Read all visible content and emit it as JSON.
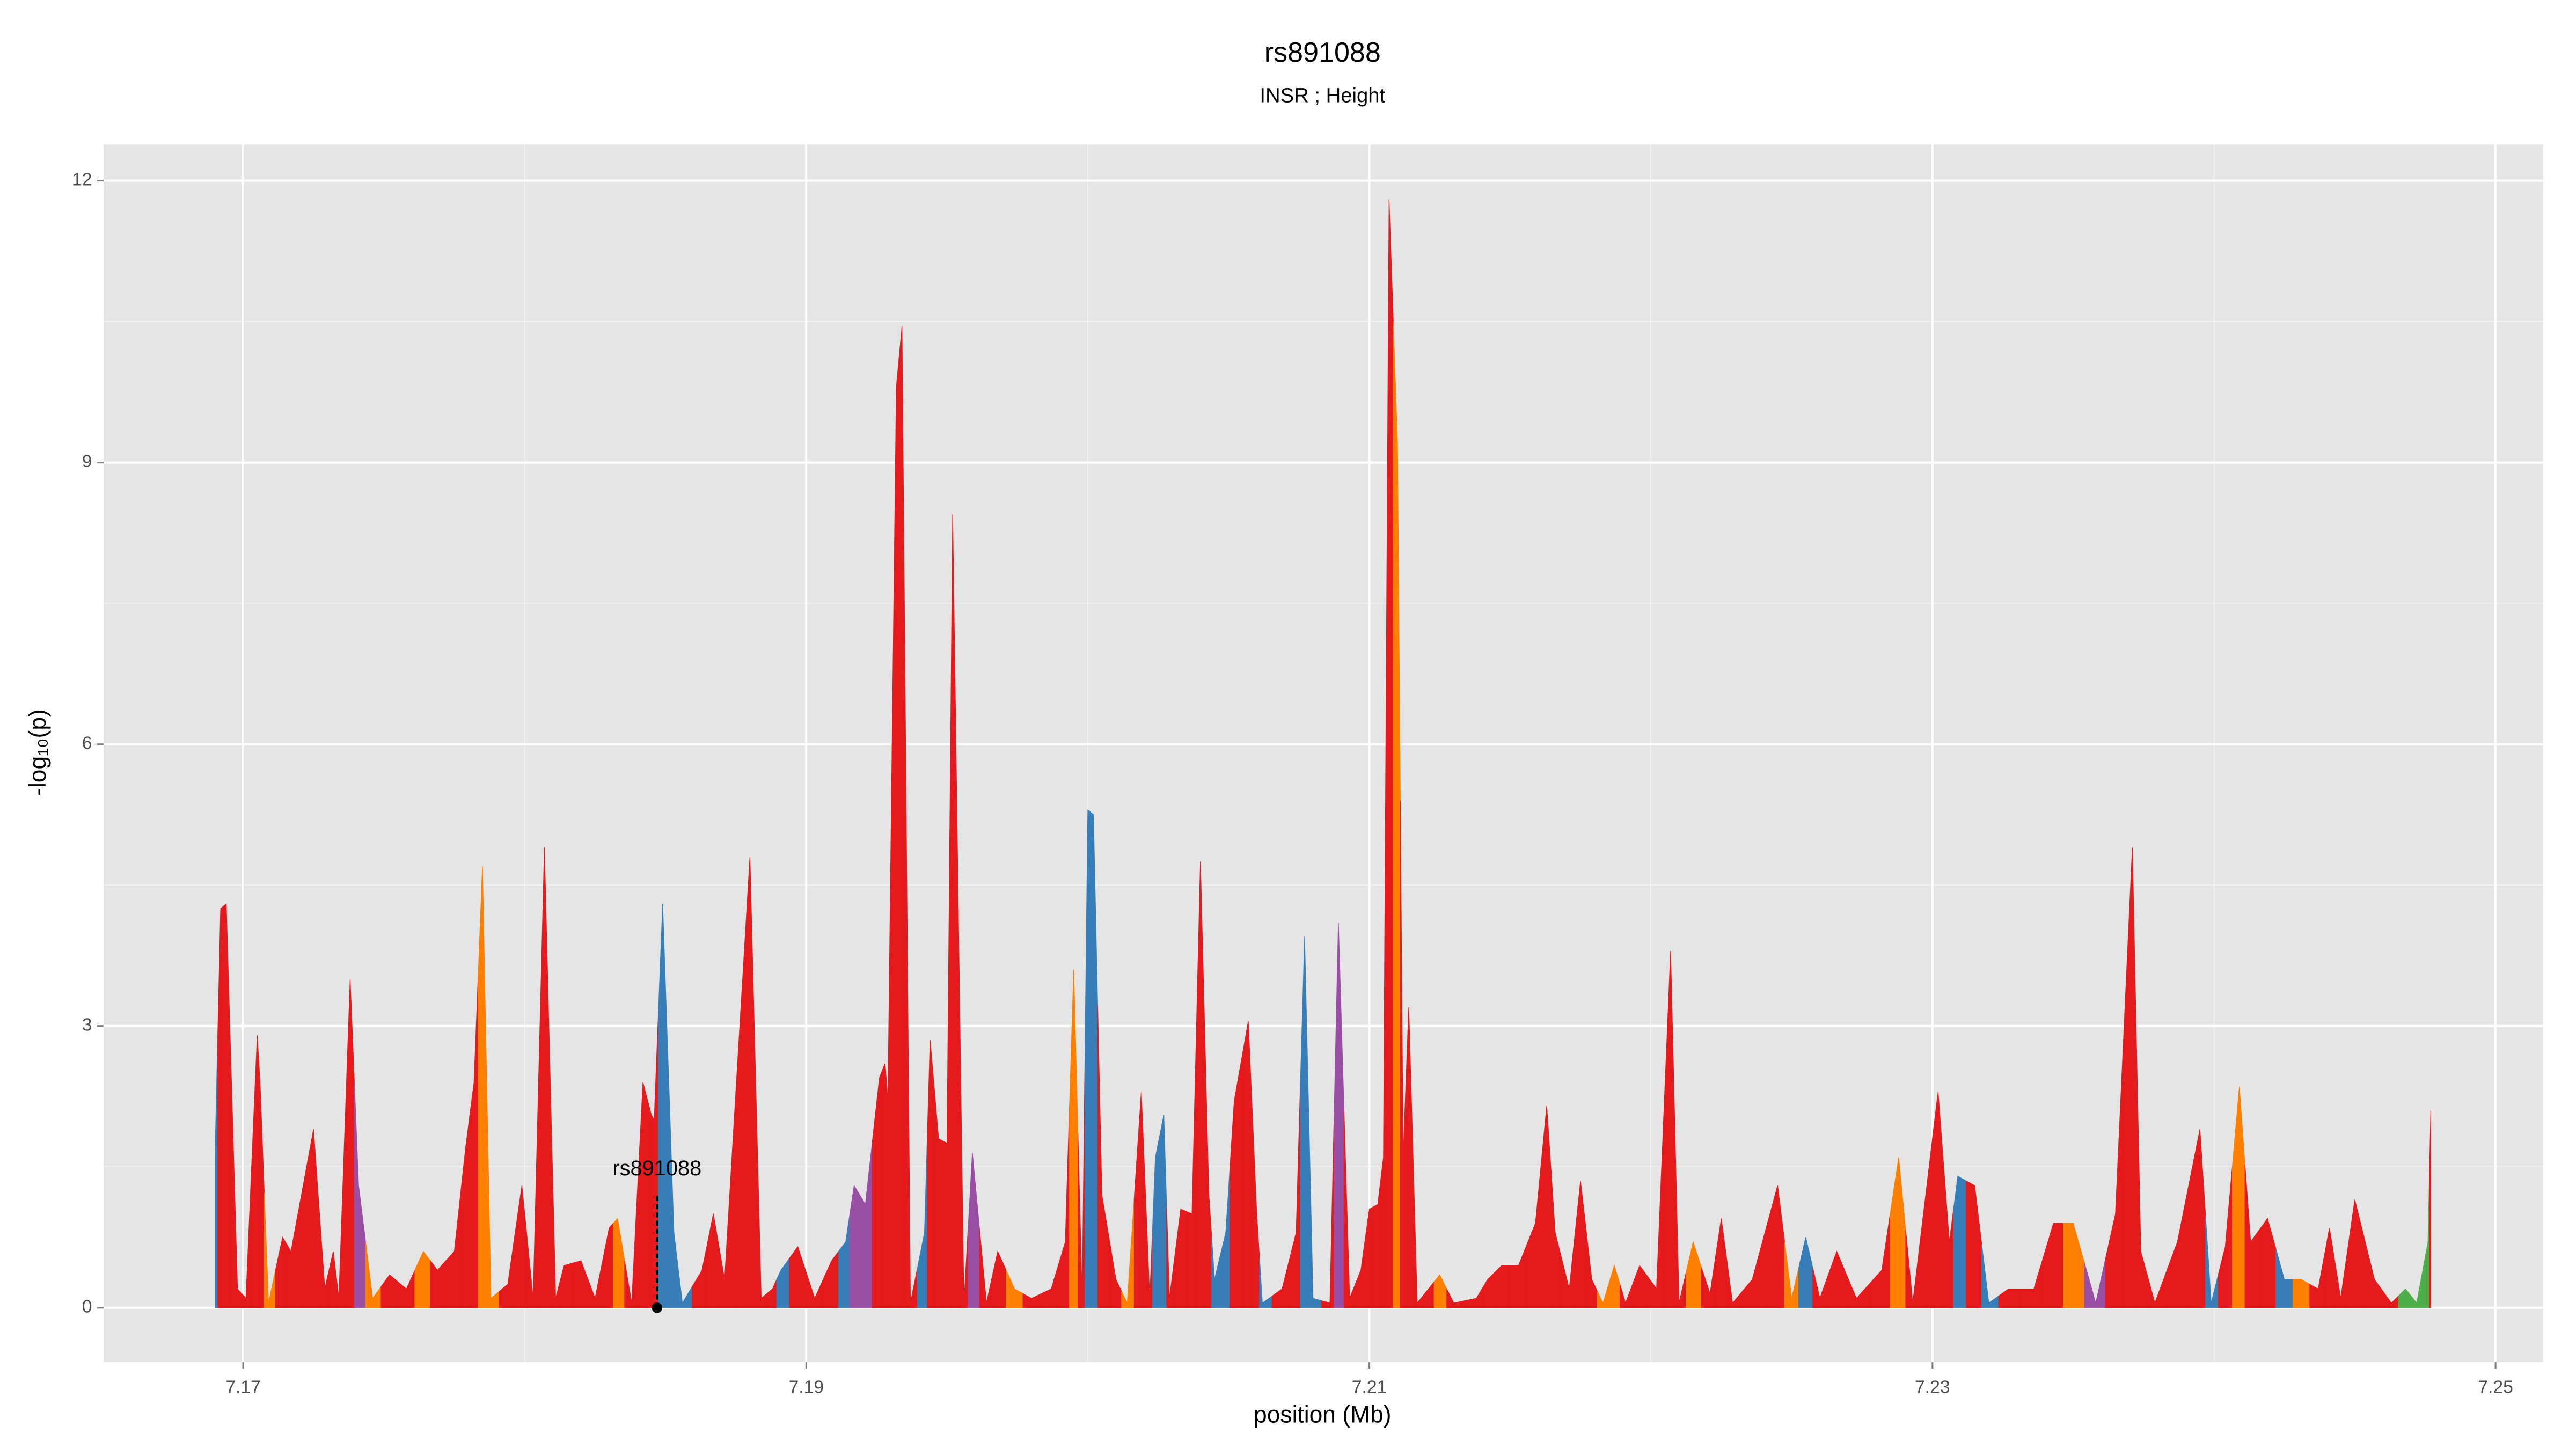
{
  "chart_data": {
    "type": "area",
    "title": "rs891088",
    "subtitle": "INSR ; Height",
    "xlabel": "position (Mb)",
    "ylabel": "-log₁₀(p)",
    "xlim": [
      7.16504,
      7.25169
    ],
    "ylim": [
      -0.577,
      12.384
    ],
    "xticks": [
      7.17,
      7.19,
      7.21,
      7.23,
      7.25
    ],
    "yticks": [
      0,
      3,
      6,
      9,
      12
    ],
    "grid": true,
    "annotation": {
      "text": "rs891088",
      "x": 7.1847
    },
    "x": [
      7.169,
      7.1692,
      7.1694,
      7.1698,
      7.1701,
      7.1705,
      7.1706,
      7.1709,
      7.1714,
      7.1717,
      7.1725,
      7.1729,
      7.1732,
      7.1734,
      7.1738,
      7.1741,
      7.1746,
      7.1752,
      7.1758,
      7.1764,
      7.1769,
      7.1775,
      7.1779,
      7.1782,
      7.1785,
      7.1788,
      7.1794,
      7.1799,
      7.1803,
      7.1807,
      7.1811,
      7.1814,
      7.182,
      7.1825,
      7.183,
      7.1833,
      7.1838,
      7.1842,
      7.1845,
      7.1846,
      7.1849,
      7.1853,
      7.1856,
      7.1863,
      7.1867,
      7.1871,
      7.188,
      7.1884,
      7.1888,
      7.1891,
      7.1897,
      7.1903,
      7.1909,
      7.1914,
      7.1917,
      7.1921,
      7.1926,
      7.1928,
      7.1929,
      7.1932,
      7.1934,
      7.1937,
      7.1942,
      7.1944,
      7.1947,
      7.195,
      7.1952,
      7.1956,
      7.1959,
      7.1964,
      7.1968,
      7.1974,
      7.198,
      7.1987,
      7.1992,
      7.1995,
      7.1998,
      7.2,
      7.2002,
      7.2005,
      7.201,
      7.2014,
      7.2019,
      7.2022,
      7.2024,
      7.2027,
      7.2029,
      7.2033,
      7.2037,
      7.204,
      7.2043,
      7.2045,
      7.2049,
      7.2052,
      7.2057,
      7.206,
      7.2062,
      7.2069,
      7.2074,
      7.2077,
      7.208,
      7.2086,
      7.2089,
      7.2093,
      7.2097,
      7.21,
      7.2103,
      7.2105,
      7.2107,
      7.211,
      7.2112,
      7.2114,
      7.2117,
      7.2121,
      7.2125,
      7.213,
      7.2138,
      7.2142,
      7.2147,
      7.2153,
      7.2159,
      7.2163,
      7.2166,
      7.2171,
      7.2175,
      7.2179,
      7.2183,
      7.2187,
      7.2191,
      7.2196,
      7.2202,
      7.2207,
      7.221,
      7.2215,
      7.2221,
      7.2225,
      7.2229,
      7.2236,
      7.2245,
      7.225,
      7.2255,
      7.226,
      7.2266,
      7.2273,
      7.2282,
      7.2288,
      7.2293,
      7.2302,
      7.2306,
      7.2309,
      7.2315,
      7.232,
      7.2327,
      7.2336,
      7.2343,
      7.235,
      7.2358,
      7.2365,
      7.2371,
      7.2374,
      7.2379,
      7.2387,
      7.2395,
      7.2399,
      7.2404,
      7.2409,
      7.2413,
      7.2419,
      7.2425,
      7.2431,
      7.2437,
      7.2441,
      7.2445,
      7.245,
      7.2457,
      7.2463,
      7.2468,
      7.2472,
      7.2476,
      7.2477
    ],
    "values": [
      1.6,
      4.25,
      4.3,
      0.2,
      0.1,
      2.9,
      2.4,
      0.05,
      0.75,
      0.6,
      1.9,
      0.2,
      0.6,
      0.1,
      3.5,
      1.3,
      0.1,
      0.35,
      0.2,
      0.6,
      0.4,
      0.6,
      1.7,
      2.4,
      4.7,
      0.1,
      0.25,
      1.3,
      0.1,
      4.9,
      0.1,
      0.45,
      0.5,
      0.1,
      0.85,
      0.95,
      0.05,
      2.4,
      2.05,
      2.0,
      4.3,
      0.8,
      0.05,
      0.4,
      1.0,
      0.3,
      4.8,
      0.1,
      0.2,
      0.4,
      0.65,
      0.1,
      0.5,
      0.7,
      1.3,
      1.1,
      2.45,
      2.6,
      2.2,
      9.8,
      10.45,
      0.05,
      0.8,
      2.85,
      1.8,
      1.75,
      8.45,
      0.05,
      1.65,
      0.05,
      0.6,
      0.2,
      0.1,
      0.2,
      0.7,
      3.6,
      0.1,
      5.3,
      5.25,
      1.2,
      0.3,
      0.05,
      2.3,
      0.1,
      1.6,
      2.05,
      0.1,
      1.05,
      1.0,
      4.75,
      1.2,
      0.3,
      0.8,
      2.2,
      3.05,
      1.0,
      0.05,
      0.2,
      0.8,
      3.95,
      0.1,
      0.05,
      4.1,
      0.1,
      0.4,
      1.05,
      1.1,
      1.6,
      11.8,
      9.2,
      1.6,
      3.2,
      0.05,
      0.2,
      0.35,
      0.05,
      0.1,
      0.3,
      0.45,
      0.45,
      0.9,
      2.15,
      0.8,
      0.2,
      1.35,
      0.3,
      0.05,
      0.45,
      0.05,
      0.45,
      0.2,
      3.8,
      0.05,
      0.7,
      0.15,
      0.95,
      0.05,
      0.3,
      1.3,
      0.1,
      0.75,
      0.1,
      0.6,
      0.1,
      0.4,
      1.6,
      0.05,
      2.3,
      0.7,
      1.4,
      1.3,
      0.05,
      0.2,
      0.2,
      0.9,
      0.9,
      0.05,
      1.0,
      4.9,
      0.6,
      0.05,
      0.7,
      1.9,
      0.05,
      0.65,
      2.35,
      0.7,
      0.95,
      0.3,
      0.3,
      0.2,
      0.85,
      0.1,
      1.15,
      0.3,
      0.05,
      0.2,
      0.05,
      0.7,
      2.1
    ],
    "colors": [
      "#377eb8",
      "#e41a1c",
      "#e41a1c",
      "#e41a1c",
      "#e41a1c",
      "#e41a1c",
      "#e41a1c",
      "#ff7f00",
      "#e41a1c",
      "#e41a1c",
      "#e41a1c",
      "#e41a1c",
      "#e41a1c",
      "#e41a1c",
      "#e41a1c",
      "#984ea3",
      "#ff7f00",
      "#e41a1c",
      "#e41a1c",
      "#ff7f00",
      "#e41a1c",
      "#e41a1c",
      "#e41a1c",
      "#e41a1c",
      "#ff7f00",
      "#ff7f00",
      "#e41a1c",
      "#e41a1c",
      "#e41a1c",
      "#e41a1c",
      "#e41a1c",
      "#e41a1c",
      "#e41a1c",
      "#e41a1c",
      "#e41a1c",
      "#ff7f00",
      "#e41a1c",
      "#e41a1c",
      "#e41a1c",
      "#e41a1c",
      "#377eb8",
      "#377eb8",
      "#377eb8",
      "#e41a1c",
      "#e41a1c",
      "#e41a1c",
      "#e41a1c",
      "#e41a1c",
      "#e41a1c",
      "#377eb8",
      "#e41a1c",
      "#e41a1c",
      "#e41a1c",
      "#377eb8",
      "#984ea3",
      "#984ea3",
      "#e41a1c",
      "#e41a1c",
      "#e41a1c",
      "#e41a1c",
      "#e41a1c",
      "#e41a1c",
      "#377eb8",
      "#e41a1c",
      "#e41a1c",
      "#e41a1c",
      "#e41a1c",
      "#e41a1c",
      "#984ea3",
      "#e41a1c",
      "#e41a1c",
      "#ff7f00",
      "#e41a1c",
      "#e41a1c",
      "#e41a1c",
      "#ff7f00",
      "#e41a1c",
      "#377eb8",
      "#377eb8",
      "#e41a1c",
      "#e41a1c",
      "#ff7f00",
      "#e41a1c",
      "#e41a1c",
      "#377eb8",
      "#377eb8",
      "#e41a1c",
      "#e41a1c",
      "#e41a1c",
      "#e41a1c",
      "#e41a1c",
      "#377eb8",
      "#377eb8",
      "#e41a1c",
      "#e41a1c",
      "#e41a1c",
      "#377eb8",
      "#e41a1c",
      "#e41a1c",
      "#377eb8",
      "#377eb8",
      "#e41a1c",
      "#984ea3",
      "#e41a1c",
      "#e41a1c",
      "#e41a1c",
      "#e41a1c",
      "#e41a1c",
      "#e41a1c",
      "#ff7f00",
      "#e41a1c",
      "#e41a1c",
      "#e41a1c",
      "#e41a1c",
      "#ff7f00",
      "#e41a1c",
      "#e41a1c",
      "#e41a1c",
      "#e41a1c",
      "#e41a1c",
      "#e41a1c",
      "#e41a1c",
      "#e41a1c",
      "#e41a1c",
      "#e41a1c",
      "#e41a1c",
      "#ff7f00",
      "#ff7f00",
      "#e41a1c",
      "#e41a1c",
      "#e41a1c",
      "#e41a1c",
      "#e41a1c",
      "#ff7f00",
      "#e41a1c",
      "#e41a1c",
      "#e41a1c",
      "#e41a1c",
      "#e41a1c",
      "#ff7f00",
      "#377eb8",
      "#e41a1c",
      "#e41a1c",
      "#e41a1c",
      "#e41a1c",
      "#ff7f00",
      "#e41a1c",
      "#e41a1c",
      "#e41a1c",
      "#377eb8",
      "#e41a1c",
      "#377eb8",
      "#e41a1c",
      "#e41a1c",
      "#e41a1c",
      "#ff7f00",
      "#984ea3",
      "#e41a1c",
      "#e41a1c",
      "#e41a1c",
      "#e41a1c",
      "#e41a1c",
      "#e41a1c",
      "#377eb8",
      "#e41a1c",
      "#ff7f00",
      "#e41a1c",
      "#e41a1c",
      "#377eb8",
      "#ff7f00",
      "#e41a1c",
      "#e41a1c",
      "#e41a1c",
      "#e41a1c",
      "#e41a1c",
      "#e41a1c",
      "#4daf4a",
      "#4daf4a",
      "#4daf4a",
      "#e41a1c"
    ]
  }
}
